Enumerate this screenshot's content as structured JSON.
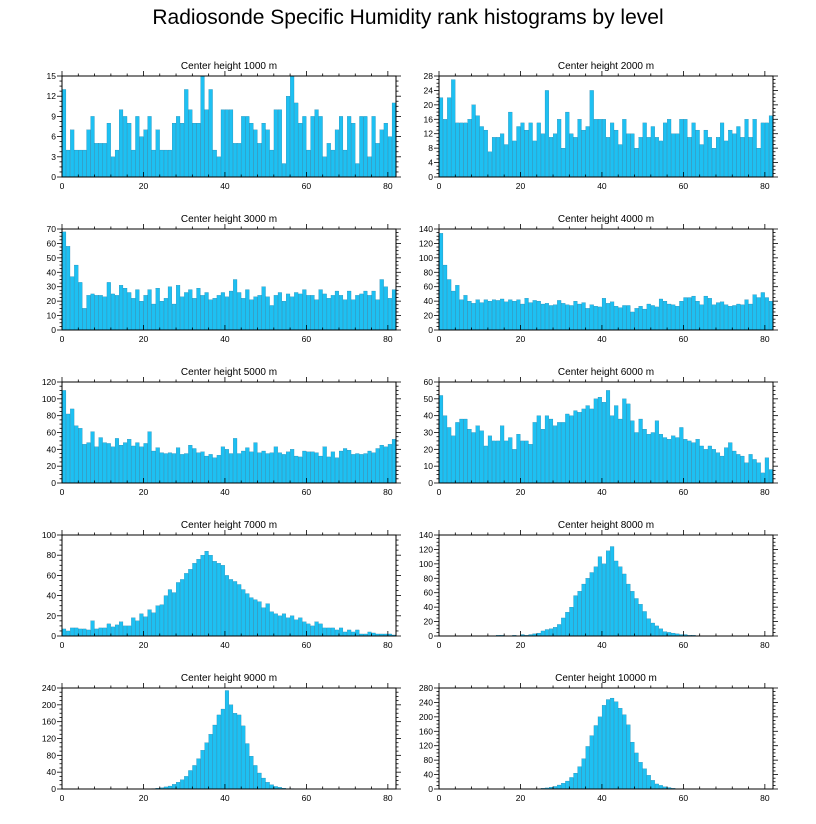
{
  "title": "Radiosonde Specific Humidity rank histograms by level",
  "colors": {
    "bar": "#1ec0f2",
    "bar_edge": "#0a6f9a",
    "axis": "#000000"
  },
  "chart_data": [
    {
      "type": "bar",
      "title": "Center height 1000 m",
      "xlim": [
        0,
        82
      ],
      "ylim": [
        0,
        15
      ],
      "xticks": [
        0,
        20,
        40,
        60,
        80
      ],
      "yticks": [
        0,
        3,
        6,
        9,
        12,
        15
      ],
      "values": [
        13,
        4,
        7,
        4,
        4,
        4,
        7,
        9,
        5,
        5,
        5,
        8,
        3,
        4,
        10,
        9,
        8,
        4,
        9,
        6,
        7,
        9,
        4,
        7,
        4,
        4,
        4,
        8,
        9,
        8,
        13,
        10,
        8,
        8,
        15,
        10,
        13,
        4,
        3,
        10,
        10,
        10,
        5,
        5,
        9,
        9,
        8,
        7,
        5,
        8,
        7,
        4,
        10,
        10,
        2,
        12,
        15,
        11,
        8,
        9,
        4,
        9,
        10,
        9,
        3,
        5,
        4,
        7,
        9,
        4,
        9,
        8,
        2,
        9,
        9,
        3,
        9,
        5,
        7,
        8,
        6,
        11
      ]
    },
    {
      "type": "bar",
      "title": "Center height 2000 m",
      "xlim": [
        0,
        82
      ],
      "ylim": [
        0,
        28
      ],
      "xticks": [
        0,
        20,
        40,
        60,
        80
      ],
      "yticks": [
        0,
        4,
        8,
        12,
        16,
        20,
        24,
        28
      ],
      "values": [
        22,
        16,
        22,
        27,
        15,
        15,
        15,
        16,
        20,
        17,
        14,
        13,
        7,
        11,
        11,
        12,
        9,
        18,
        10,
        14,
        15,
        13,
        15,
        10,
        15,
        12,
        24,
        11,
        12,
        16,
        8,
        18,
        12,
        11,
        16,
        13,
        14,
        24,
        16,
        16,
        16,
        11,
        15,
        13,
        9,
        16,
        12,
        12,
        8,
        11,
        15,
        11,
        14,
        11,
        10,
        15,
        16,
        12,
        12,
        16,
        16,
        11,
        15,
        13,
        9,
        13,
        11,
        8,
        11,
        15,
        10,
        13,
        12,
        14,
        11,
        16,
        11,
        16,
        8,
        15,
        15,
        17
      ]
    },
    {
      "type": "bar",
      "title": "Center height 3000 m",
      "xlim": [
        0,
        82
      ],
      "ylim": [
        0,
        70
      ],
      "xticks": [
        0,
        20,
        40,
        60,
        80
      ],
      "yticks": [
        0,
        10,
        20,
        30,
        40,
        50,
        60,
        70
      ],
      "values": [
        68,
        58,
        37,
        45,
        33,
        15,
        24,
        25,
        24,
        24,
        23,
        33,
        25,
        24,
        31,
        29,
        26,
        22,
        28,
        20,
        24,
        28,
        18,
        29,
        20,
        22,
        30,
        18,
        31,
        23,
        26,
        28,
        22,
        29,
        24,
        26,
        21,
        22,
        24,
        26,
        23,
        27,
        35,
        26,
        22,
        28,
        21,
        23,
        24,
        30,
        23,
        17,
        24,
        26,
        20,
        25,
        23,
        26,
        25,
        28,
        24,
        24,
        21,
        28,
        25,
        22,
        24,
        27,
        24,
        21,
        27,
        21,
        24,
        25,
        27,
        24,
        27,
        21,
        35,
        30,
        22,
        28
      ]
    },
    {
      "type": "bar",
      "title": "Center height 4000 m",
      "xlim": [
        0,
        82
      ],
      "ylim": [
        0,
        140
      ],
      "xticks": [
        0,
        20,
        40,
        60,
        80
      ],
      "yticks": [
        0,
        20,
        40,
        60,
        80,
        100,
        120,
        140
      ],
      "values": [
        134,
        90,
        70,
        54,
        62,
        42,
        48,
        40,
        37,
        42,
        38,
        42,
        40,
        42,
        41,
        43,
        39,
        42,
        40,
        42,
        36,
        44,
        38,
        41,
        40,
        36,
        37,
        34,
        35,
        41,
        37,
        35,
        34,
        40,
        36,
        38,
        30,
        35,
        33,
        32,
        44,
        37,
        39,
        33,
        31,
        34,
        34,
        25,
        30,
        33,
        29,
        36,
        34,
        32,
        43,
        40,
        36,
        35,
        33,
        40,
        45,
        45,
        47,
        40,
        35,
        47,
        44,
        35,
        38,
        39,
        35,
        33,
        34,
        36,
        35,
        42,
        36,
        49,
        45,
        52,
        45,
        40
      ]
    },
    {
      "type": "bar",
      "title": "Center height 5000 m",
      "xlim": [
        0,
        82
      ],
      "ylim": [
        0,
        120
      ],
      "xticks": [
        0,
        20,
        40,
        60,
        80
      ],
      "yticks": [
        0,
        20,
        40,
        60,
        80,
        100,
        120
      ],
      "values": [
        110,
        82,
        88,
        68,
        65,
        46,
        48,
        61,
        43,
        54,
        48,
        47,
        43,
        53,
        45,
        48,
        52,
        44,
        48,
        43,
        47,
        61,
        38,
        42,
        36,
        35,
        36,
        35,
        42,
        34,
        35,
        45,
        41,
        36,
        37,
        32,
        34,
        30,
        33,
        43,
        40,
        35,
        53,
        35,
        38,
        42,
        37,
        48,
        36,
        38,
        35,
        36,
        43,
        36,
        34,
        37,
        40,
        32,
        31,
        38,
        37,
        37,
        36,
        32,
        43,
        31,
        37,
        30,
        38,
        41,
        39,
        34,
        35,
        34,
        35,
        38,
        36,
        41,
        45,
        43,
        46,
        52
      ]
    },
    {
      "type": "bar",
      "title": "Center height 6000 m",
      "xlim": [
        0,
        82
      ],
      "ylim": [
        0,
        60
      ],
      "xticks": [
        0,
        20,
        40,
        60,
        80
      ],
      "yticks": [
        0,
        10,
        20,
        30,
        40,
        50,
        60
      ],
      "values": [
        52,
        40,
        33,
        28,
        36,
        38,
        38,
        32,
        30,
        34,
        31,
        22,
        28,
        25,
        25,
        34,
        25,
        27,
        20,
        29,
        25,
        25,
        23,
        36,
        40,
        32,
        40,
        38,
        34,
        36,
        36,
        41,
        40,
        43,
        42,
        44,
        46,
        44,
        50,
        51,
        48,
        55,
        40,
        46,
        38,
        50,
        47,
        37,
        30,
        38,
        32,
        29,
        30,
        37,
        29,
        27,
        26,
        28,
        27,
        33,
        26,
        25,
        24,
        26,
        22,
        20,
        22,
        20,
        18,
        16,
        21,
        24,
        19,
        17,
        16,
        12,
        17,
        14,
        12,
        6,
        15,
        8
      ]
    },
    {
      "type": "bar",
      "title": "Center height 7000 m",
      "xlim": [
        0,
        82
      ],
      "ylim": [
        0,
        100
      ],
      "xticks": [
        0,
        20,
        40,
        60,
        80
      ],
      "yticks": [
        0,
        20,
        40,
        60,
        80,
        100
      ],
      "values": [
        7,
        5,
        8,
        8,
        7,
        7,
        6,
        15,
        7,
        8,
        8,
        12,
        9,
        11,
        14,
        10,
        10,
        18,
        15,
        22,
        19,
        26,
        23,
        30,
        31,
        40,
        46,
        43,
        53,
        56,
        62,
        66,
        72,
        76,
        80,
        84,
        80,
        74,
        72,
        70,
        60,
        56,
        54,
        51,
        46,
        42,
        38,
        36,
        34,
        28,
        32,
        24,
        22,
        20,
        22,
        18,
        20,
        16,
        18,
        14,
        12,
        10,
        14,
        12,
        8,
        8,
        8,
        6,
        8,
        4,
        6,
        4,
        6,
        2,
        2,
        4,
        3,
        2,
        2,
        2,
        2,
        1
      ]
    },
    {
      "type": "bar",
      "title": "Center height 8000 m",
      "xlim": [
        0,
        82
      ],
      "ylim": [
        0,
        140
      ],
      "xticks": [
        0,
        20,
        40,
        60,
        80
      ],
      "yticks": [
        0,
        20,
        40,
        60,
        80,
        100,
        120,
        140
      ],
      "values": [
        0,
        0,
        0,
        0,
        0,
        0,
        0,
        0,
        0,
        0,
        0,
        0,
        0,
        0,
        1,
        1,
        0,
        0,
        1,
        0,
        2,
        1,
        2,
        3,
        4,
        7,
        9,
        10,
        12,
        16,
        25,
        33,
        40,
        56,
        62,
        72,
        80,
        88,
        96,
        110,
        100,
        118,
        124,
        104,
        96,
        86,
        72,
        62,
        52,
        44,
        34,
        24,
        18,
        14,
        10,
        6,
        5,
        4,
        3,
        2,
        2,
        1,
        1,
        0,
        0,
        0,
        0,
        0,
        0,
        0,
        0,
        0,
        0,
        0,
        0,
        0,
        0,
        0,
        0,
        0,
        0,
        0
      ]
    },
    {
      "type": "bar",
      "title": "Center height 9000 m",
      "xlim": [
        0,
        82
      ],
      "ylim": [
        0,
        240
      ],
      "xticks": [
        0,
        20,
        40,
        60,
        80
      ],
      "yticks": [
        0,
        40,
        80,
        120,
        160,
        200,
        240
      ],
      "values": [
        0,
        0,
        0,
        0,
        0,
        0,
        0,
        0,
        0,
        0,
        0,
        0,
        0,
        0,
        0,
        0,
        0,
        0,
        0,
        0,
        0,
        0,
        1,
        2,
        3,
        5,
        7,
        11,
        16,
        22,
        30,
        44,
        56,
        72,
        92,
        110,
        130,
        152,
        176,
        190,
        234,
        200,
        180,
        176,
        150,
        108,
        78,
        56,
        38,
        26,
        16,
        10,
        6,
        4,
        2,
        1,
        1,
        0,
        0,
        0,
        0,
        0,
        0,
        0,
        0,
        0,
        0,
        0,
        0,
        0,
        0,
        0,
        0,
        0,
        0,
        0,
        0,
        0,
        0,
        0,
        0,
        0
      ]
    },
    {
      "type": "bar",
      "title": "Center height 10000 m",
      "xlim": [
        0,
        82
      ],
      "ylim": [
        0,
        280
      ],
      "xticks": [
        0,
        20,
        40,
        60,
        80
      ],
      "yticks": [
        0,
        40,
        80,
        120,
        160,
        200,
        240,
        280
      ],
      "values": [
        0,
        0,
        0,
        0,
        0,
        0,
        0,
        0,
        0,
        0,
        0,
        0,
        0,
        0,
        0,
        0,
        0,
        0,
        0,
        0,
        0,
        0,
        0,
        0,
        1,
        2,
        3,
        5,
        7,
        11,
        16,
        22,
        32,
        44,
        62,
        84,
        118,
        148,
        176,
        200,
        232,
        248,
        252,
        242,
        224,
        206,
        178,
        130,
        100,
        74,
        56,
        38,
        24,
        14,
        10,
        6,
        4,
        2,
        1,
        1,
        0,
        0,
        0,
        0,
        0,
        0,
        0,
        0,
        0,
        0,
        0,
        0,
        0,
        0,
        0,
        0,
        0,
        0,
        0,
        0,
        0,
        0
      ]
    }
  ]
}
